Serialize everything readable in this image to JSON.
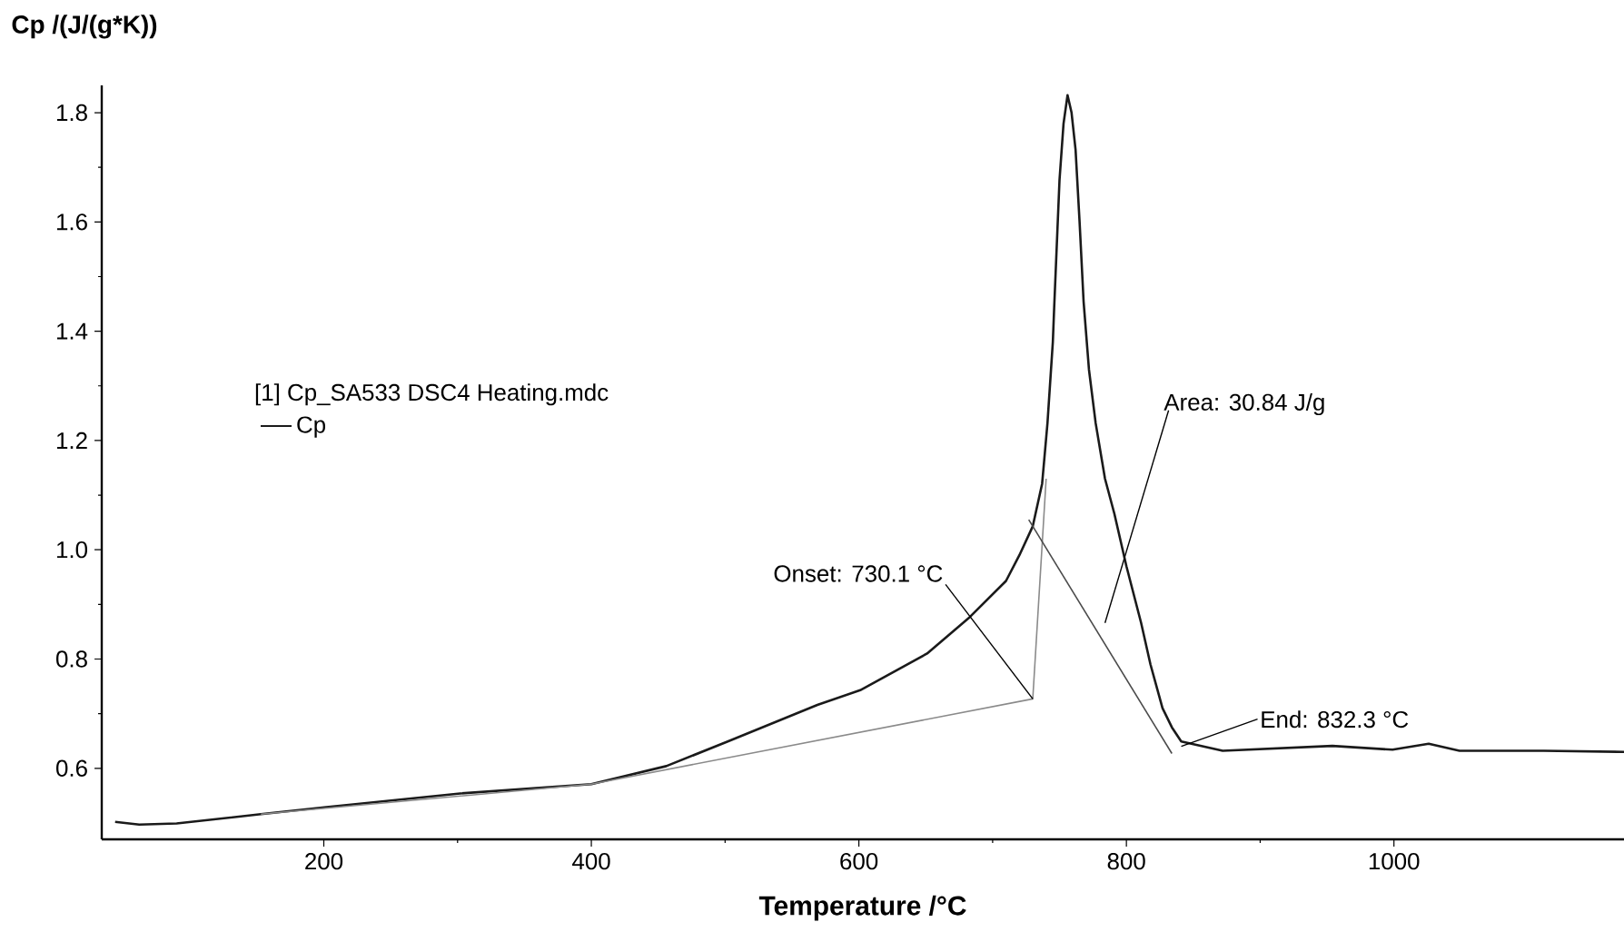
{
  "chart_data": {
    "type": "line",
    "xlabel": "Temperature /°C",
    "ylabel": "Cp /(J/(g*K))",
    "legend_title": "[1] Cp_SA533 DSC4 Heating.mdc",
    "legend": "left",
    "xlim": [
      34,
      1172
    ],
    "ylim": [
      0.47,
      1.85
    ],
    "xticks": [
      200,
      400,
      600,
      800,
      1000
    ],
    "yticks": [
      0.6,
      0.8,
      {
        "value": 1,
        "label": "1.0"
      },
      1.2,
      1.4,
      1.6,
      1.8
    ],
    "grid": false,
    "marker": "none",
    "line_style": "solid",
    "series": [
      {
        "name": "Cp",
        "color": "#1a1a1a",
        "x": [
          44,
          62,
          90,
          153,
          202,
          302,
          400,
          456,
          502,
          569,
          601,
          651,
          683,
          710,
          720,
          730,
          737,
          741,
          745,
          746,
          750,
          753,
          756,
          759,
          762,
          765,
          768,
          772,
          777,
          784,
          791,
          800,
          811,
          818,
          827,
          834,
          841,
          872,
          954,
          999,
          1026,
          1049,
          1112,
          1172
        ],
        "values": [
          0.502,
          0.497,
          0.499,
          0.516,
          0.529,
          0.554,
          0.571,
          0.604,
          0.649,
          0.716,
          0.743,
          0.81,
          0.877,
          0.943,
          0.99,
          1.043,
          1.121,
          1.232,
          1.38,
          1.443,
          1.677,
          1.78,
          1.832,
          1.8,
          1.732,
          1.6,
          1.454,
          1.33,
          1.232,
          1.13,
          1.066,
          0.97,
          0.866,
          0.79,
          0.71,
          0.675,
          0.649,
          0.632,
          0.641,
          0.634,
          0.645,
          0.632,
          0.632,
          0.63
        ]
      },
      {
        "color": "#8a8a8a",
        "x": [
          153,
          400,
          730,
          740
        ],
        "values": [
          0.516,
          0.571,
          0.727,
          1.13
        ]
      },
      {
        "color": "#4a4a4a",
        "x": [
          727,
          834
        ],
        "values": [
          1.055,
          0.627
        ]
      }
    ],
    "annotations": [
      {
        "text": "Onset: 730.1 °C",
        "x": 730,
        "y": 0.727
      },
      "Area: 30.84 J/g",
      {
        "text": "End: 832.3 °C",
        "x": 841,
        "y": 0.64
      }
    ]
  }
}
